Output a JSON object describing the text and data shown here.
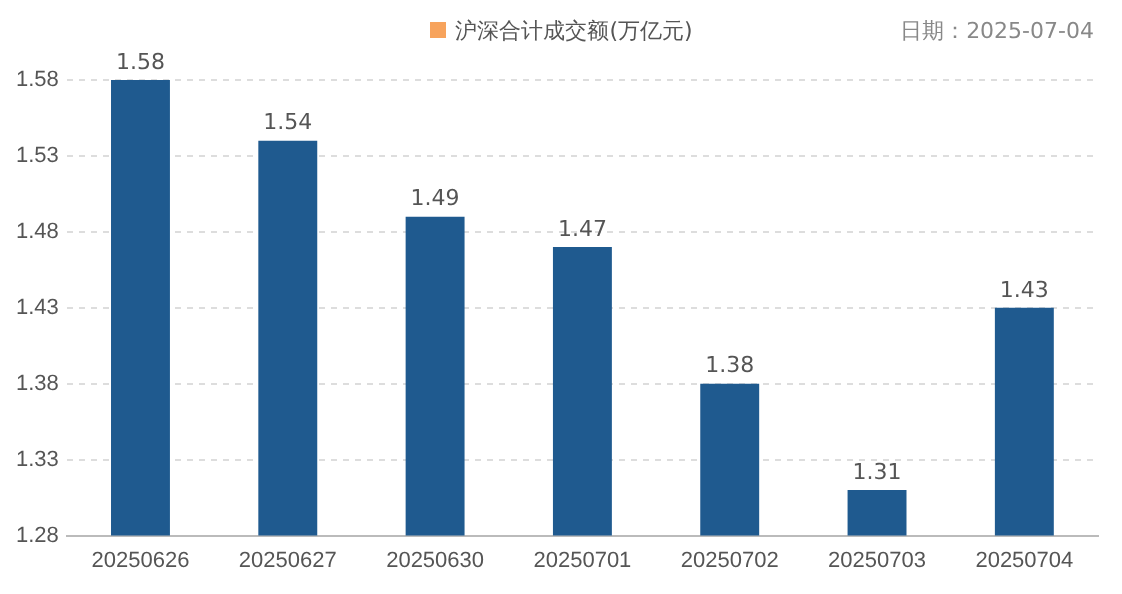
{
  "chart_data": {
    "type": "bar",
    "categories": [
      "20250626",
      "20250627",
      "20250630",
      "20250701",
      "20250702",
      "20250703",
      "20250704"
    ],
    "series": [
      {
        "name": "沪深合计成交额(万亿元)",
        "color": "#1f5a8f",
        "values": [
          1.58,
          1.54,
          1.49,
          1.47,
          1.38,
          1.31,
          1.43
        ]
      }
    ],
    "ylim": [
      1.28,
      1.58
    ],
    "yticks": [
      1.28,
      1.33,
      1.38,
      1.43,
      1.48,
      1.53,
      1.58
    ],
    "grid": "y",
    "legend": "top",
    "data_labels": true,
    "annotations": [
      "日期：2025-07-04"
    ]
  }
}
